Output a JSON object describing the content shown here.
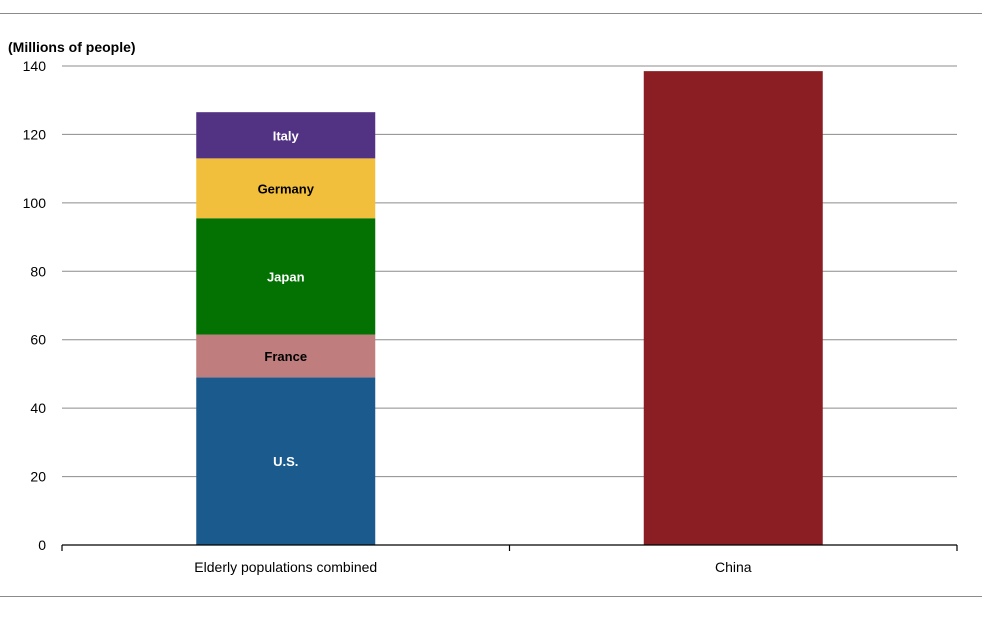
{
  "chart_data": {
    "type": "bar",
    "stacked": true,
    "unit_label": "(Millions of people)",
    "ylim": [
      0,
      140
    ],
    "yticks": [
      0,
      20,
      40,
      60,
      80,
      100,
      120,
      140
    ],
    "grid": true,
    "categories": [
      "Elderly populations combined",
      "China"
    ],
    "series": [
      {
        "name": "U.S.",
        "values": [
          49,
          0
        ],
        "color": "#1b5a8c",
        "label_color": "#ffffff",
        "show_label": true
      },
      {
        "name": "France",
        "values": [
          12.5,
          0
        ],
        "color": "#bf7d7d",
        "label_color": "#000000",
        "show_label": true
      },
      {
        "name": "Japan",
        "values": [
          34,
          0
        ],
        "color": "#037203",
        "label_color": "#ffffff",
        "show_label": true
      },
      {
        "name": "Germany",
        "values": [
          17.5,
          0
        ],
        "color": "#f2bf3c",
        "label_color": "#000000",
        "show_label": true
      },
      {
        "name": "Italy",
        "values": [
          13.5,
          0
        ],
        "color": "#523282",
        "label_color": "#ffffff",
        "show_label": true
      },
      {
        "name": "China",
        "values": [
          0,
          138.5
        ],
        "color": "#8b1e22",
        "label_color": "#ffffff",
        "show_label": false
      }
    ]
  }
}
